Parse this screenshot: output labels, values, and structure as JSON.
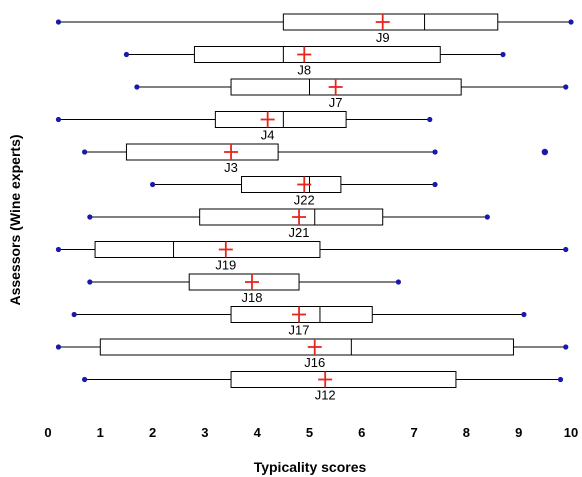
{
  "chart_data": {
    "type": "boxplot",
    "orientation": "horizontal",
    "xlabel": "Typicality scores",
    "ylabel": "Assessors  (Wine experts)",
    "xlim": [
      0,
      10
    ],
    "xticks": [
      "0",
      "1",
      "2",
      "3",
      "4",
      "5",
      "6",
      "7",
      "8",
      "9",
      "10"
    ],
    "grid": false,
    "colors": {
      "box": "#000000",
      "whisker": "#000000",
      "outlier": "#1a1aaa",
      "mean": "#e8261c"
    },
    "series": [
      {
        "name": "J9",
        "min": 0.2,
        "q1": 4.5,
        "median": 7.2,
        "q3": 8.6,
        "max": 10.0,
        "mean": 6.4,
        "outliers": []
      },
      {
        "name": "J8",
        "min": 1.5,
        "q1": 2.8,
        "median": 4.5,
        "q3": 7.5,
        "max": 8.7,
        "mean": 4.9,
        "outliers": []
      },
      {
        "name": "J7",
        "min": 1.7,
        "q1": 3.5,
        "median": 5.0,
        "q3": 7.9,
        "max": 9.9,
        "mean": 5.5,
        "outliers": []
      },
      {
        "name": "J4",
        "min": 0.2,
        "q1": 3.2,
        "median": 4.5,
        "q3": 5.7,
        "max": 7.3,
        "mean": 4.2,
        "outliers": []
      },
      {
        "name": "J3",
        "min": 0.7,
        "q1": 1.5,
        "median": 3.5,
        "q3": 4.4,
        "max": 7.4,
        "mean": 3.5,
        "outliers": [
          9.5
        ]
      },
      {
        "name": "J22",
        "min": 2.0,
        "q1": 3.7,
        "median": 5.0,
        "q3": 5.6,
        "max": 7.4,
        "mean": 4.9,
        "outliers": []
      },
      {
        "name": "J21",
        "min": 0.8,
        "q1": 2.9,
        "median": 5.1,
        "q3": 6.4,
        "max": 8.4,
        "mean": 4.8,
        "outliers": []
      },
      {
        "name": "J19",
        "min": 0.2,
        "q1": 0.9,
        "median": 2.4,
        "q3": 5.2,
        "max": 9.9,
        "mean": 3.4,
        "outliers": []
      },
      {
        "name": "J18",
        "min": 0.8,
        "q1": 2.7,
        "median": 3.9,
        "q3": 4.8,
        "max": 6.7,
        "mean": 3.9,
        "outliers": []
      },
      {
        "name": "J17",
        "min": 0.5,
        "q1": 3.5,
        "median": 5.2,
        "q3": 6.2,
        "max": 9.1,
        "mean": 4.8,
        "outliers": []
      },
      {
        "name": "J16",
        "min": 0.2,
        "q1": 1.0,
        "median": 5.8,
        "q3": 8.9,
        "max": 9.9,
        "mean": 5.1,
        "outliers": []
      },
      {
        "name": "J12",
        "min": 0.7,
        "q1": 3.5,
        "median": 5.3,
        "q3": 7.8,
        "max": 9.8,
        "mean": 5.3,
        "outliers": []
      }
    ]
  }
}
